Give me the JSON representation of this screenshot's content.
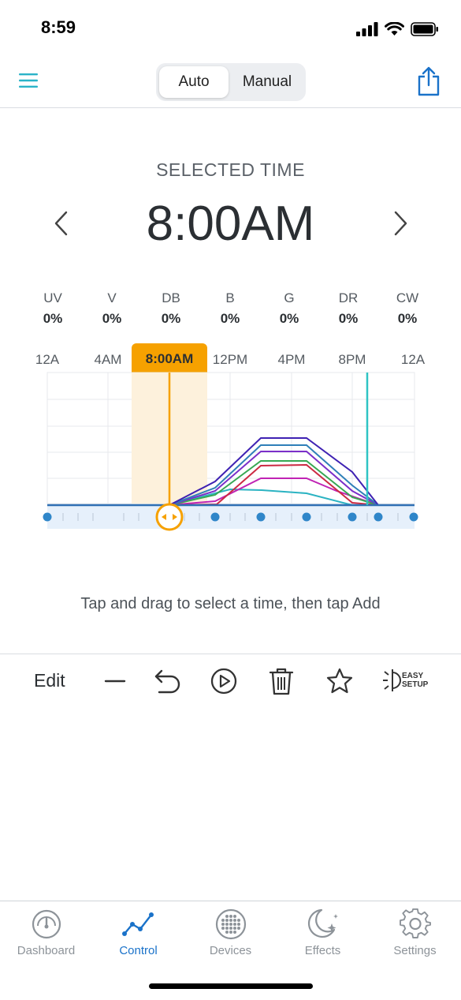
{
  "status": {
    "time": "8:59"
  },
  "header": {
    "mode_tabs": [
      {
        "label": "Auto",
        "active": true
      },
      {
        "label": "Manual",
        "active": false
      }
    ]
  },
  "selected": {
    "label": "SELECTED TIME",
    "time": "8:00AM"
  },
  "channels": [
    {
      "name": "UV",
      "value": "0%"
    },
    {
      "name": "V",
      "value": "0%"
    },
    {
      "name": "DB",
      "value": "0%"
    },
    {
      "name": "B",
      "value": "0%"
    },
    {
      "name": "G",
      "value": "0%"
    },
    {
      "name": "DR",
      "value": "0%"
    },
    {
      "name": "CW",
      "value": "0%"
    }
  ],
  "timeline": {
    "ticks": [
      "12A",
      "4AM",
      "8:00AM",
      "12PM",
      "4PM",
      "8PM",
      "12A"
    ],
    "selected_tick_index": 2,
    "accent": "#f6a100",
    "now_line_color": "#2ec4c4"
  },
  "hint": "Tap and drag to select a time, then tap Add",
  "toolbar": {
    "edit_label": "Edit",
    "easy_setup": [
      "EASY",
      "SETUP"
    ]
  },
  "tabs": [
    {
      "label": "Dashboard",
      "icon": "gauge-icon",
      "active": false
    },
    {
      "label": "Control",
      "icon": "graph-icon",
      "active": true
    },
    {
      "label": "Devices",
      "icon": "led-grid-icon",
      "active": false
    },
    {
      "label": "Effects",
      "icon": "moon-stars-icon",
      "active": false
    },
    {
      "label": "Settings",
      "icon": "gear-icon",
      "active": false
    }
  ],
  "colors": {
    "brand": "#1a72c9",
    "teal": "#2ab3c8"
  }
}
